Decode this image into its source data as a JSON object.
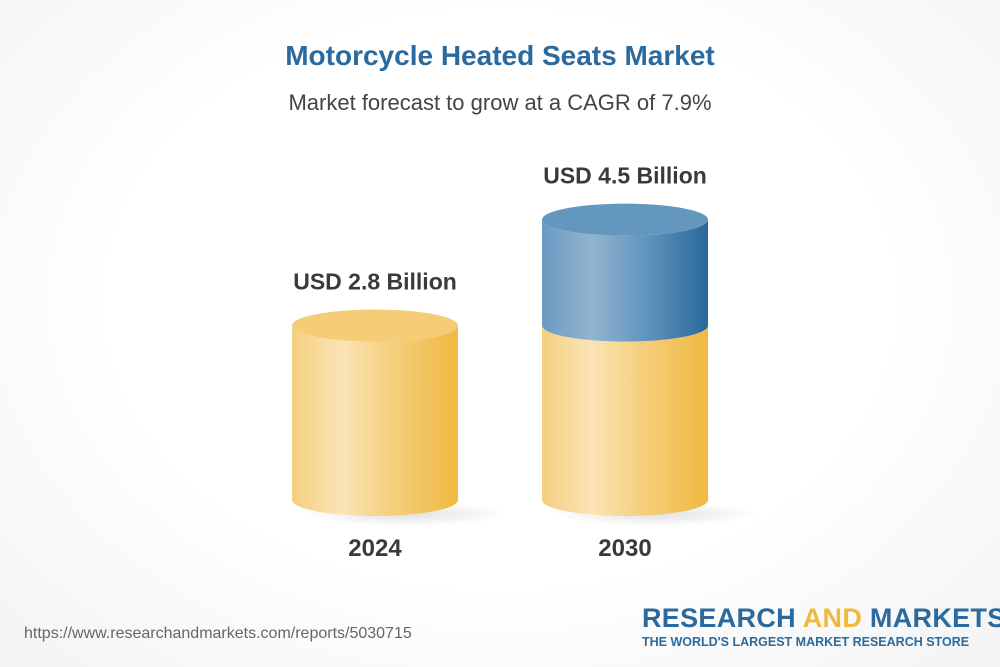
{
  "title": "Motorcycle Heated Seats Market",
  "subtitle": "Market forecast to grow at a CAGR of 7.9%",
  "chart_data": {
    "type": "bar",
    "style": "3d-cylinder",
    "categories": [
      "2024",
      "2030"
    ],
    "values": [
      2.8,
      4.5
    ],
    "unit": "USD Billion",
    "data_labels": [
      "USD 2.8 Billion",
      "USD 4.5 Billion"
    ],
    "cagr": "7.9%",
    "colors": {
      "base": "#f5cd76",
      "growth": "#5f93bb"
    },
    "grid": false
  },
  "footer": {
    "url": "https://www.researchandmarkets.com/reports/5030715",
    "logo_part1": "RESEARCH ",
    "logo_part2": "AND",
    "logo_part3": " MARKETS",
    "tagline": "THE WORLD'S LARGEST MARKET RESEARCH STORE"
  }
}
